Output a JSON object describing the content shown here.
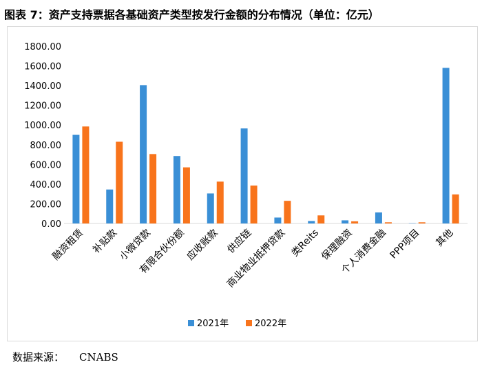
{
  "title": "图表 7：资产支持票据各基础资产类型按发行金额的分布情况（单位：亿元）",
  "source": {
    "label": "数据来源：",
    "value": "CNABS"
  },
  "colors": {
    "series_2021": "#3a8fd6",
    "series_2022": "#f8741c",
    "axis": "#d9d9d9"
  },
  "chart_data": {
    "type": "bar",
    "title": "图表 7：资产支持票据各基础资产类型按发行金额的分布情况（单位：亿元）",
    "xlabel": "",
    "ylabel": "",
    "ylim": [
      0,
      1800
    ],
    "yticks": [
      "0.00",
      "200.00",
      "400.00",
      "600.00",
      "800.00",
      "1000.00",
      "1200.00",
      "1400.00",
      "1600.00",
      "1800.00"
    ],
    "grid": false,
    "legend": "bottom",
    "categories": [
      "融资租赁",
      "补贴款",
      "小微贷款",
      "有限合伙份额",
      "应收账款",
      "供应链",
      "商业物业抵押贷款",
      "类Reits",
      "保理融资",
      "个人消费金融",
      "PPP项目",
      "其他"
    ],
    "series": [
      {
        "name": "2021年",
        "values": [
          900,
          345,
          1405,
          685,
          305,
          965,
          60,
          25,
          32,
          112,
          3,
          1580
        ]
      },
      {
        "name": "2022年",
        "values": [
          985,
          830,
          705,
          570,
          425,
          385,
          230,
          82,
          22,
          12,
          12,
          295
        ]
      }
    ]
  }
}
